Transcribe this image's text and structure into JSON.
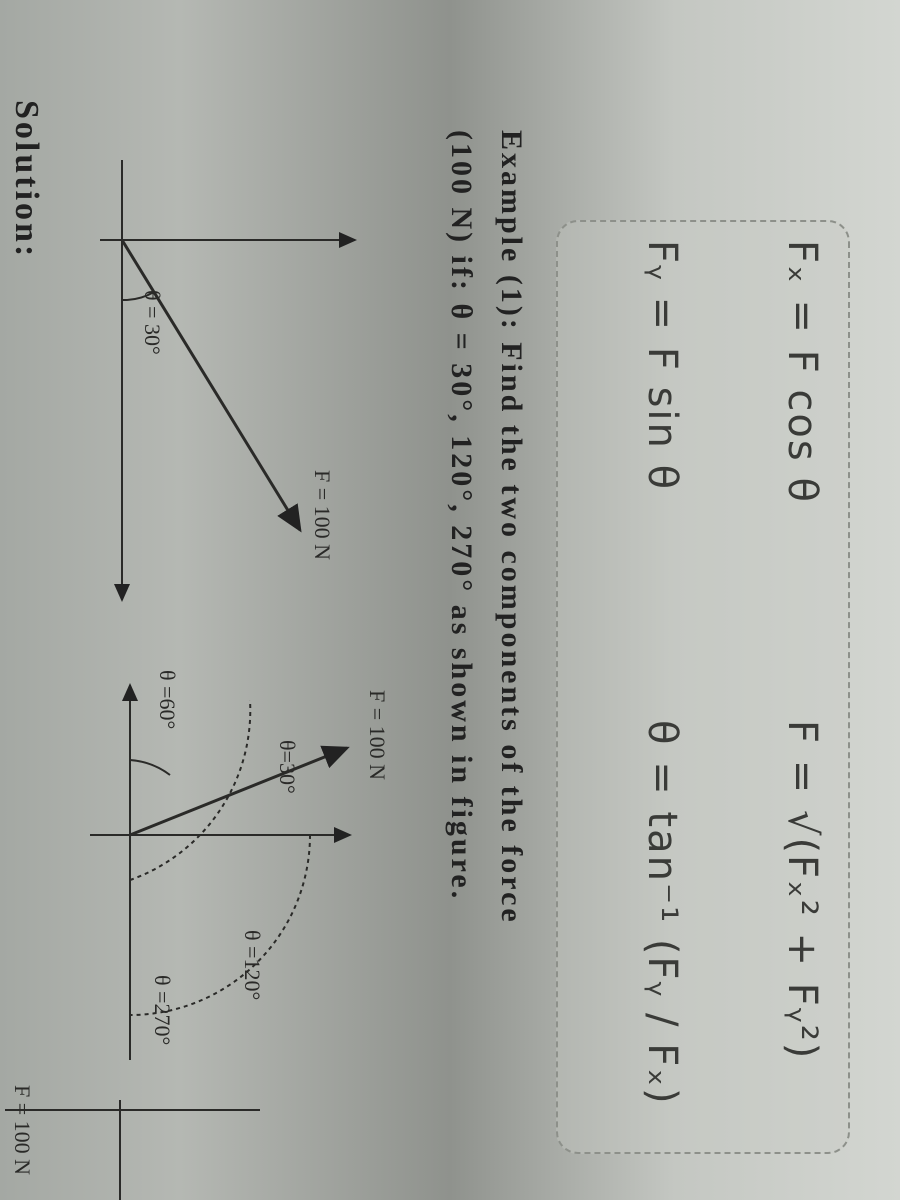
{
  "formulas": [
    "Fₓ = F cos θ",
    "F = √(Fₓ² + Fᵧ²)",
    "Fᵧ = F sin θ",
    "θ = tan⁻¹ (Fᵧ / Fₓ)"
  ],
  "example": {
    "line1": "Example (1): Find the two components of the force",
    "line2": "(100 N) if: θ = 30°, 120°, 270° as shown in figure."
  },
  "figures": [
    {
      "force_label": "F = 100 N",
      "angle_label": "θ = 30°"
    },
    {
      "force_label": "F = 100 N",
      "angle_labels": [
        "θ=30°",
        "θ =60°",
        "θ =120°",
        "θ =270°"
      ]
    },
    {
      "force_label": "F = 100 N"
    }
  ],
  "solution": "Solution:"
}
